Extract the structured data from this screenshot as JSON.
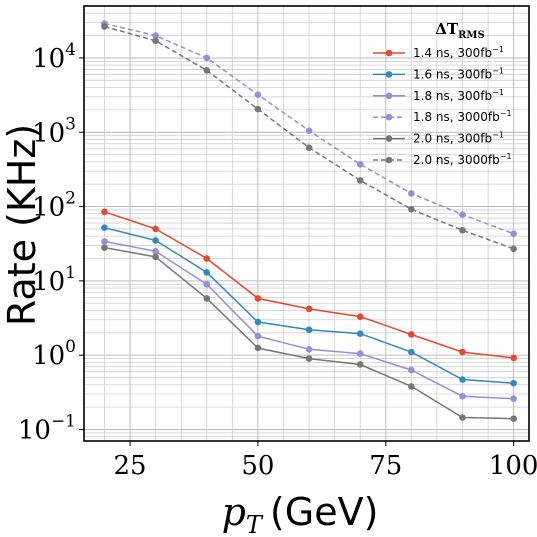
{
  "chart_data": {
    "type": "line",
    "title": "",
    "xlabel": "p_T (GeV)",
    "xlabel_parts": {
      "var": "p",
      "sub": "T",
      "unit": "(GeV)"
    },
    "ylabel": "Rate (KHz)",
    "x_scale": "linear",
    "y_scale": "log",
    "xlim": [
      16,
      103
    ],
    "ylim": [
      0.07,
      50000
    ],
    "grid": true,
    "legend": {
      "placement": "top-right",
      "title": "ΔT_RMS",
      "title_main": "ΔT",
      "title_sub": "RMS"
    },
    "x_ticks": [
      {
        "value": 25,
        "label": "25"
      },
      {
        "value": 50,
        "label": "50"
      },
      {
        "value": 75,
        "label": "75"
      },
      {
        "value": 100,
        "label": "100"
      }
    ],
    "y_ticks": [
      {
        "value": 0.1,
        "base": "10",
        "exp": "−1"
      },
      {
        "value": 1,
        "base": "10",
        "exp": "0"
      },
      {
        "value": 10,
        "base": "10",
        "exp": "1"
      },
      {
        "value": 100,
        "base": "10",
        "exp": "2"
      },
      {
        "value": 1000,
        "base": "10",
        "exp": "3"
      },
      {
        "value": 10000,
        "base": "10",
        "exp": "4"
      }
    ],
    "x": [
      20,
      30,
      40,
      50,
      60,
      70,
      80,
      90,
      100
    ],
    "series": [
      {
        "name": "1.4 ns, 300fb⁻¹",
        "label_main": "1.4 ns, 300fb",
        "label_sup": "−1",
        "color": "#e24a33",
        "dash": "solid",
        "values": [
          85,
          50,
          20,
          5.8,
          4.2,
          3.3,
          1.9,
          1.1,
          0.92
        ]
      },
      {
        "name": "1.6 ns, 300fb⁻¹",
        "label_main": "1.6 ns, 300fb",
        "label_sup": "−1",
        "color": "#348abd",
        "dash": "solid",
        "values": [
          52,
          35,
          13,
          2.8,
          2.2,
          1.95,
          1.1,
          0.47,
          0.42
        ]
      },
      {
        "name": "1.8 ns, 300fb⁻¹",
        "label_main": "1.8 ns, 300fb",
        "label_sup": "−1",
        "color": "#988ed5",
        "dash": "solid",
        "values": [
          34,
          25,
          9,
          1.8,
          1.2,
          1.05,
          0.63,
          0.28,
          0.26
        ]
      },
      {
        "name": "1.8 ns, 3000fb⁻¹",
        "label_main": "1.8 ns, 3000fb",
        "label_sup": "−1",
        "color": "#988ed5",
        "dash": "dashed",
        "values": [
          29000,
          20000,
          10000,
          3200,
          1050,
          370,
          150,
          78,
          43
        ]
      },
      {
        "name": "2.0 ns, 300fb⁻¹",
        "label_main": "2.0 ns, 300fb",
        "label_sup": "−1",
        "color": "#777777",
        "dash": "solid",
        "values": [
          28,
          21,
          5.8,
          1.25,
          0.9,
          0.75,
          0.38,
          0.145,
          0.14
        ]
      },
      {
        "name": "2.0 ns, 3000fb⁻¹",
        "label_main": "2.0 ns, 3000fb",
        "label_sup": "−1",
        "color": "#777777",
        "dash": "dashed",
        "values": [
          26500,
          17000,
          6800,
          2050,
          620,
          225,
          92,
          48,
          27
        ]
      }
    ]
  }
}
